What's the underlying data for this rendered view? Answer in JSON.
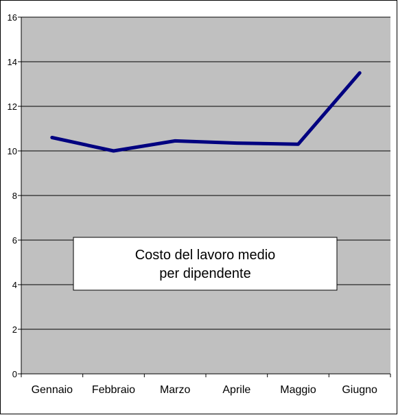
{
  "chart_data": {
    "type": "line",
    "title": "",
    "xlabel": "",
    "ylabel": "",
    "categories": [
      "Gennaio",
      "Febbraio",
      "Marzo",
      "Aprile",
      "Maggio",
      "Giugno"
    ],
    "series": [
      {
        "name": "Costo del lavoro medio per dipendente",
        "name_lines": [
          "Costo del lavoro medio",
          "per dipendente"
        ],
        "values": [
          10.6,
          10.0,
          10.45,
          10.35,
          10.3,
          13.5
        ],
        "color": "#000080"
      }
    ],
    "ylim": [
      0,
      16
    ],
    "yticks": [
      0,
      2,
      4,
      6,
      8,
      10,
      12,
      14,
      16
    ],
    "ytick_labels": [
      "0",
      "2",
      "4",
      "6",
      "8",
      "10",
      "12",
      "14",
      "16"
    ],
    "grid": true,
    "legend_position": "center",
    "plot_background": "#c0c0c0"
  }
}
